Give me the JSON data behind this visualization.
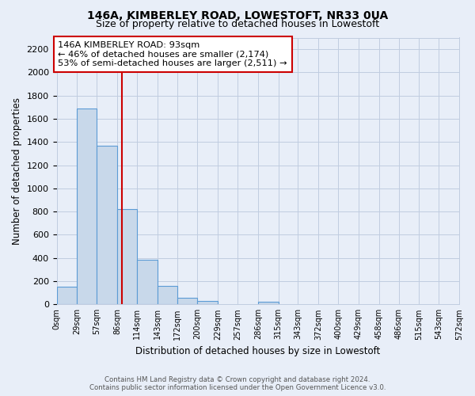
{
  "title": "146A, KIMBERLEY ROAD, LOWESTOFT, NR33 0UA",
  "subtitle": "Size of property relative to detached houses in Lowestoft",
  "xlabel": "Distribution of detached houses by size in Lowestoft",
  "ylabel": "Number of detached properties",
  "bin_edges": [
    0,
    29,
    57,
    86,
    114,
    143,
    172,
    200,
    229,
    257,
    286,
    315,
    343,
    372,
    400,
    429,
    458,
    486,
    515,
    543,
    572
  ],
  "bin_labels": [
    "0sqm",
    "29sqm",
    "57sqm",
    "86sqm",
    "114sqm",
    "143sqm",
    "172sqm",
    "200sqm",
    "229sqm",
    "257sqm",
    "286sqm",
    "315sqm",
    "343sqm",
    "372sqm",
    "400sqm",
    "429sqm",
    "458sqm",
    "486sqm",
    "515sqm",
    "543sqm",
    "572sqm"
  ],
  "bar_heights": [
    155,
    1690,
    1370,
    820,
    385,
    160,
    60,
    30,
    0,
    0,
    25,
    0,
    0,
    0,
    0,
    0,
    0,
    0,
    0,
    0
  ],
  "bar_color": "#c8d8ea",
  "bar_edge_color": "#5b9bd5",
  "property_line_x": 93,
  "property_line_color": "#cc0000",
  "annotation_title": "146A KIMBERLEY ROAD: 93sqm",
  "annotation_line1": "← 46% of detached houses are smaller (2,174)",
  "annotation_line2": "53% of semi-detached houses are larger (2,511) →",
  "ylim": [
    0,
    2300
  ],
  "yticks": [
    0,
    200,
    400,
    600,
    800,
    1000,
    1200,
    1400,
    1600,
    1800,
    2000,
    2200
  ],
  "footer_line1": "Contains HM Land Registry data © Crown copyright and database right 2024.",
  "footer_line2": "Contains public sector information licensed under the Open Government Licence v3.0.",
  "background_color": "#e8eef8",
  "grid_color": "#c0cce0",
  "title_fontsize": 10,
  "subtitle_fontsize": 9
}
